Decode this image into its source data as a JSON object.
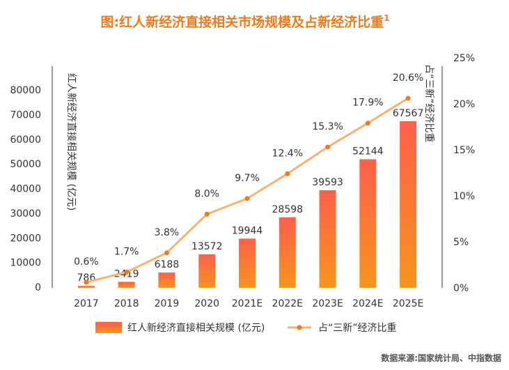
{
  "chart_data": {
    "type": "bar",
    "title": "图:红人新经济直接相关市场规模及占新经济比重",
    "title_superscript": "1",
    "categories": [
      "2017",
      "2018",
      "2019",
      "2020",
      "2021E",
      "2022E",
      "2023E",
      "2024E",
      "2025E"
    ],
    "series": [
      {
        "name": "红人新经济直接相关规模 (亿元)",
        "type": "bar",
        "axis": "left",
        "values": [
          786,
          2419,
          6188,
          13572,
          19944,
          28598,
          39593,
          52144,
          67567
        ],
        "labels": [
          "786",
          "2419",
          "6188",
          "13572",
          "19944",
          "28598",
          "39593",
          "52144",
          "67567"
        ]
      },
      {
        "name": "占“三新”经济比重",
        "type": "line",
        "axis": "right",
        "values": [
          0.6,
          1.7,
          3.8,
          8.0,
          9.7,
          12.4,
          15.3,
          17.9,
          20.6
        ],
        "labels": [
          "0.6%",
          "1.7%",
          "3.8%",
          "8.0%",
          "9.7%",
          "12.4%",
          "15.3%",
          "17.9%",
          "20.6%"
        ]
      }
    ],
    "y_left": {
      "label": "红人新经济直接相关规模 (亿元)",
      "min": 0,
      "max": 80000,
      "ticks": [
        0,
        10000,
        20000,
        30000,
        40000,
        50000,
        60000,
        70000,
        80000
      ],
      "tick_labels": [
        "0",
        "10000",
        "20000",
        "30000",
        "40000",
        "50000",
        "60000",
        "70000",
        "80000"
      ]
    },
    "y_right": {
      "label": "占“三新”经济比重",
      "min": 0,
      "max": 25,
      "ticks": [
        0,
        5,
        10,
        15,
        20,
        25
      ],
      "tick_labels": [
        "0%",
        "5%",
        "10%",
        "15%",
        "20%",
        "25%"
      ]
    },
    "legend": {
      "position": "bottom",
      "bar_label": "红人新经济直接相关规模 (亿元)",
      "line_label": "占“三新”经济比重"
    },
    "grid": false,
    "source": "数据来源:国家统计局、中指数据",
    "colors": {
      "title": "#f07a1a",
      "bar_top": "#ff5f4a",
      "bar_bottom": "#f7941d",
      "line": "#f7b26e",
      "marker": "#f07a1a",
      "axis": "#333333"
    }
  }
}
